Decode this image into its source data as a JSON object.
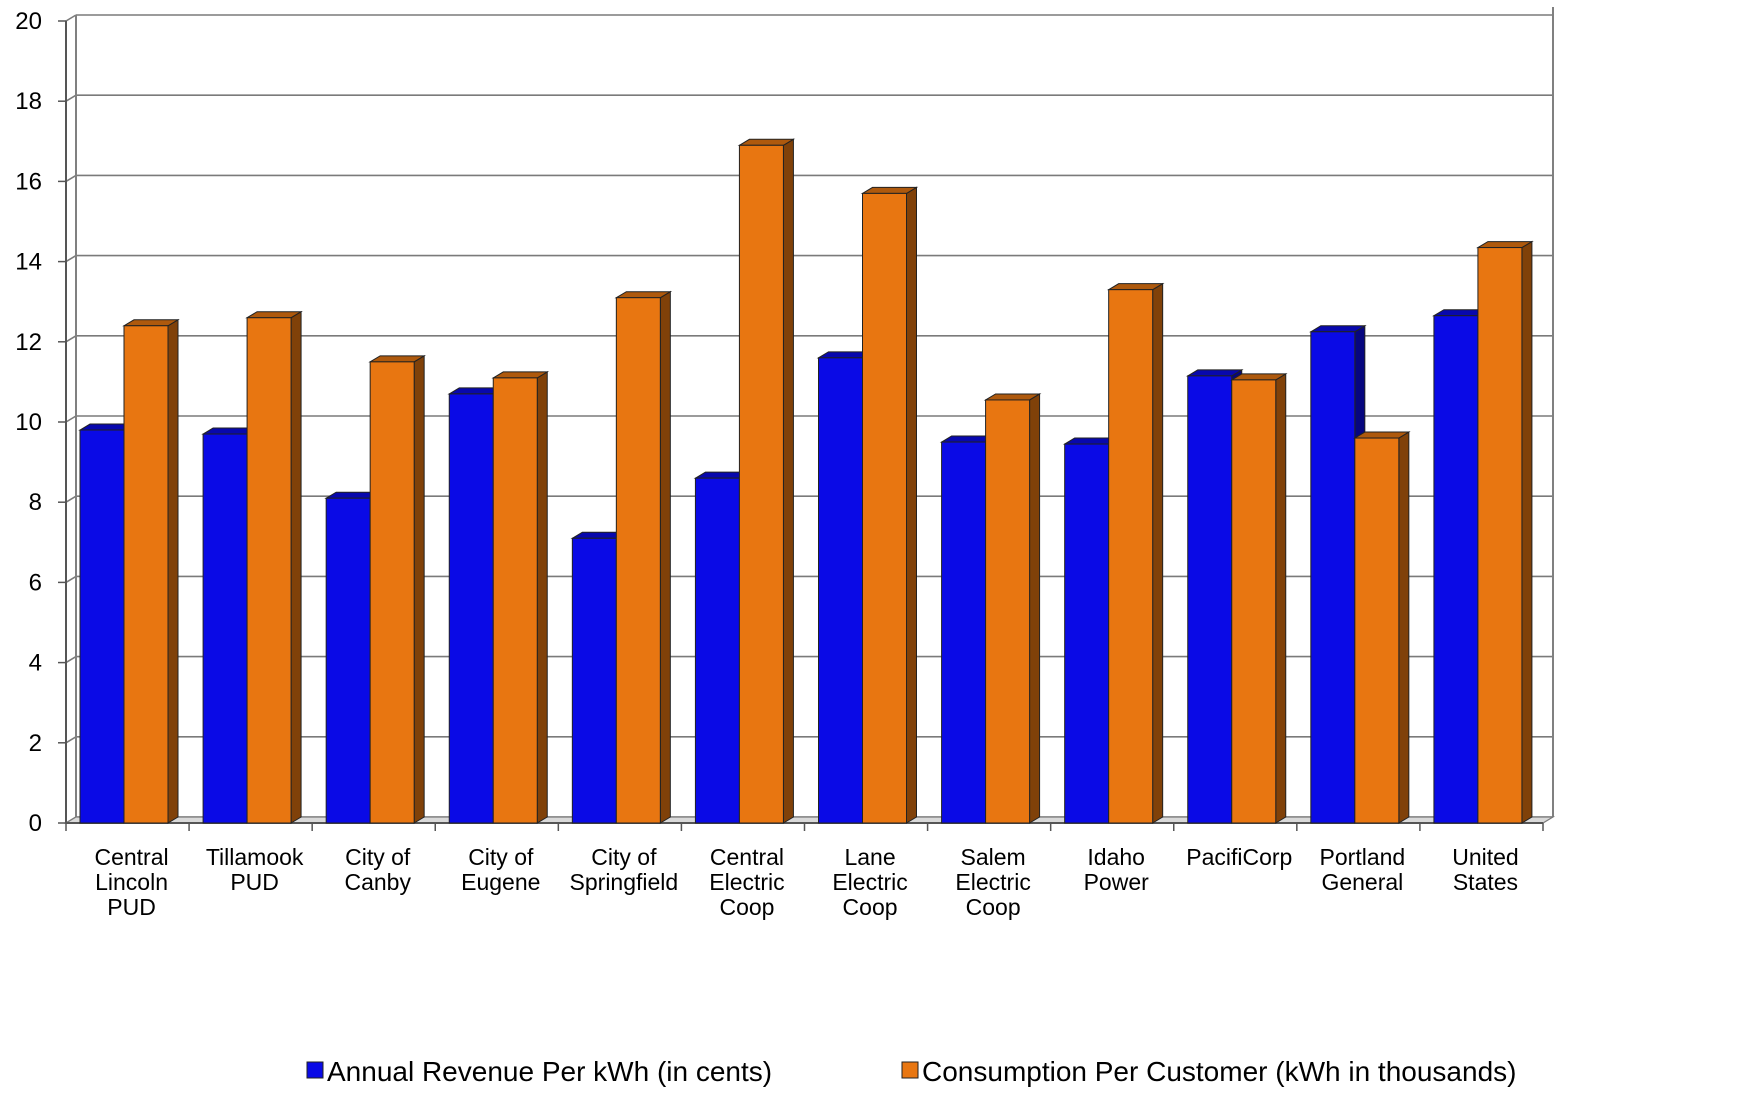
{
  "chart_data": {
    "type": "bar",
    "categories": [
      "Central Lincoln PUD",
      "Tillamook PUD",
      "City of Canby",
      "City of Eugene",
      "City of Springfield",
      "Central Electric Coop",
      "Lane Electric Coop",
      "Salem Electric Coop",
      "Idaho Power",
      "PacifiCorp",
      "Portland General",
      "United States"
    ],
    "category_lines": [
      [
        "Central",
        "Lincoln",
        "PUD"
      ],
      [
        "Tillamook",
        "PUD"
      ],
      [
        "City of",
        "Canby"
      ],
      [
        "City of",
        "Eugene"
      ],
      [
        "City of",
        "Springfield"
      ],
      [
        "Central",
        "Electric",
        "Coop"
      ],
      [
        "Lane",
        "Electric",
        "Coop"
      ],
      [
        "Salem",
        "Electric",
        "Coop"
      ],
      [
        "Idaho",
        "Power"
      ],
      [
        "PacifiCorp"
      ],
      [
        "Portland",
        "General"
      ],
      [
        "United",
        "States"
      ]
    ],
    "series": [
      {
        "name": "Annual Revenue Per kWh (in cents)",
        "color": "#0a0ae6",
        "values": [
          9.8,
          9.7,
          8.1,
          10.7,
          7.1,
          8.6,
          11.6,
          9.5,
          9.45,
          11.15,
          12.25,
          12.65
        ]
      },
      {
        "name": "Consumption Per Customer (kWh in thousands)",
        "color": "#e87611",
        "values": [
          12.4,
          12.6,
          11.5,
          11.1,
          13.1,
          16.9,
          15.7,
          10.55,
          13.3,
          11.05,
          9.6,
          14.35
        ]
      }
    ],
    "title": "",
    "xlabel": "",
    "ylabel": "",
    "ylim": [
      0,
      20
    ],
    "yticks": [
      "0",
      "2",
      "4",
      "6",
      "8",
      "10",
      "12",
      "14",
      "16",
      "18",
      "20"
    ],
    "grid": true,
    "legend_position": "bottom",
    "style": "3d-bar"
  }
}
